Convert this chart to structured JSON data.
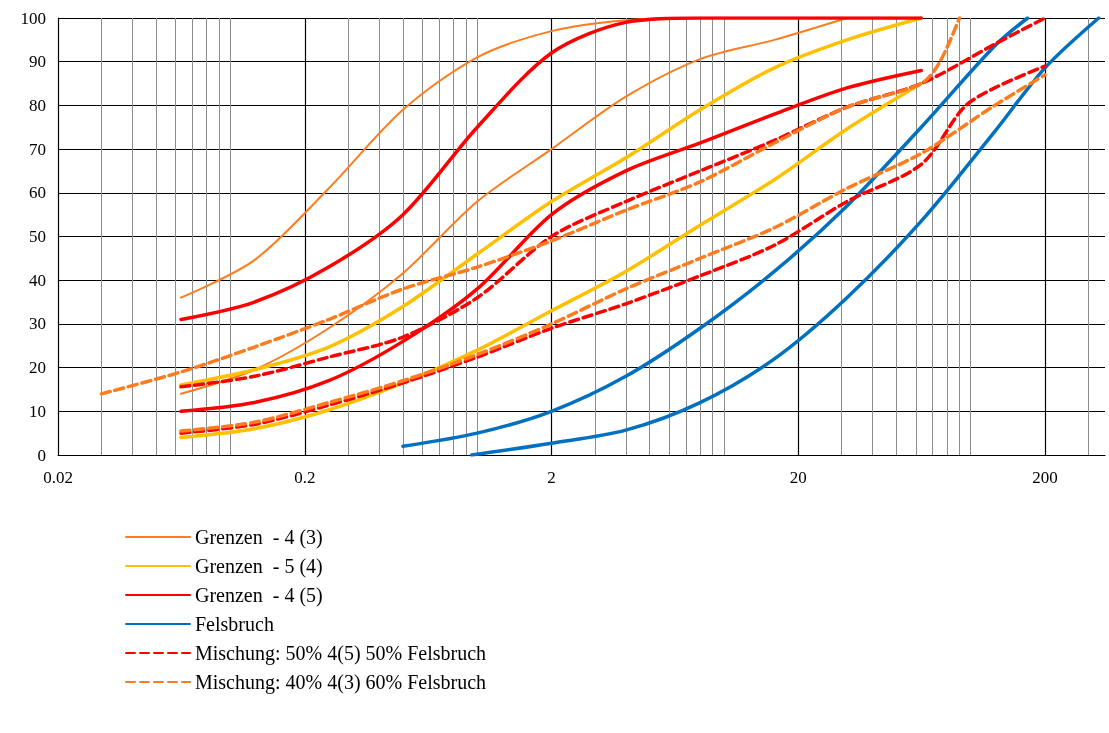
{
  "chart_data": {
    "type": "line",
    "xlim": [
      0.02,
      350
    ],
    "xticks": [
      0.02,
      0.2,
      2,
      20,
      200
    ],
    "ylim": [
      0,
      100
    ],
    "yticks": [
      0,
      10,
      20,
      30,
      40,
      50,
      60,
      70,
      80,
      90,
      100
    ],
    "log": "x",
    "grid": true,
    "legend": "bottom",
    "marker": "none",
    "series": [
      {
        "name": "Grenzen  - 4 (3)",
        "color": "#ff7c1e",
        "x": [
          0.063,
          0.125,
          0.25,
          0.5,
          1,
          2,
          4,
          8,
          16
        ],
        "values": [
          36,
          44.6,
          61,
          79,
          91,
          97,
          99.5,
          100,
          100
        ]
      },
      {
        "color": "#ff7c1e",
        "x": [
          0.063,
          0.125,
          0.25,
          0.5,
          1,
          2,
          4,
          8,
          16,
          31.5
        ],
        "values": [
          14,
          19.5,
          29,
          41.6,
          58,
          70,
          82,
          90.6,
          95,
          100
        ]
      },
      {
        "name": "Grenzen  - 5 (4)",
        "color": "#ffc000",
        "x": [
          0.063,
          0.125,
          0.25,
          0.5,
          1,
          2,
          4,
          8,
          16,
          31.5,
          63
        ],
        "values": [
          16,
          19.5,
          24.7,
          34,
          46,
          58,
          68,
          79,
          88.6,
          95,
          100
        ]
      },
      {
        "color": "#ffc000",
        "x": [
          0.063,
          0.125,
          0.25,
          0.5,
          1,
          2,
          4,
          8,
          16,
          31.5,
          63
        ],
        "values": [
          4,
          6,
          10.3,
          16.5,
          24,
          33,
          42,
          52.6,
          63,
          74.6,
          85
        ]
      },
      {
        "name": "Grenzen  - 4 (5)",
        "color": "#ff0000",
        "x": [
          0.063,
          0.125,
          0.25,
          0.5,
          1,
          2,
          4,
          8,
          16,
          31.5,
          63
        ],
        "values": [
          31,
          35,
          43,
          55,
          75,
          92,
          99,
          100,
          100,
          100,
          100
        ]
      },
      {
        "color": "#ff0000",
        "x": [
          0.063,
          0.125,
          0.25,
          0.5,
          1,
          2,
          4,
          8,
          16,
          31.5,
          63
        ],
        "values": [
          10,
          12,
          17,
          26,
          38,
          55,
          65,
          71.4,
          78,
          84,
          88
        ]
      },
      {
        "name": "Felsbruch",
        "color": "#0070c0",
        "x": [
          0.5,
          1,
          2,
          4,
          8,
          16,
          31.5,
          63,
          125,
          170
        ],
        "values": [
          2,
          5,
          10,
          18,
          29,
          42,
          57,
          75,
          93.6,
          100
        ]
      },
      {
        "color": "#0070c0",
        "x": [
          0.95,
          2,
          4,
          8,
          16,
          31.5,
          63,
          125,
          200,
          330
        ],
        "values": [
          0,
          2.7,
          5.7,
          12,
          22,
          36,
          53.5,
          74,
          88.6,
          100
        ]
      },
      {
        "name": "Mischung: 50% 4(5) 50% Felsbruch",
        "color": "#ff0000",
        "line_style": "dashed",
        "x": [
          0.063,
          0.125,
          0.25,
          0.5,
          1,
          2,
          4,
          8,
          16,
          31.5,
          63,
          125,
          200
        ],
        "values": [
          15.6,
          18,
          22.4,
          27,
          36,
          50,
          58,
          65,
          72,
          79.6,
          85,
          94,
          100
        ]
      },
      {
        "color": "#ff0000",
        "line_style": "dashed",
        "x": [
          0.063,
          0.125,
          0.25,
          0.5,
          1,
          2,
          4,
          8,
          16,
          31.5,
          63,
          94,
          125,
          200
        ],
        "values": [
          5,
          7,
          11.4,
          16.5,
          22.4,
          29,
          34.6,
          41,
          48,
          58,
          66.5,
          79.6,
          84,
          89
        ]
      },
      {
        "name": "Mischung: 40% 4(3) 60% Felsbruch",
        "color": "#ff7c1e",
        "line_style": "dashed",
        "x": [
          0.03,
          0.063,
          0.125,
          0.25,
          0.5,
          1,
          2,
          4,
          8,
          16,
          31.5,
          63,
          75,
          90
        ],
        "values": [
          14,
          19,
          24.7,
          31,
          38,
          43,
          49,
          56,
          62.5,
          71.4,
          79.6,
          85,
          90,
          100
        ]
      },
      {
        "color": "#ff7c1e",
        "line_style": "dashed",
        "x": [
          0.063,
          0.125,
          0.25,
          0.5,
          1,
          2,
          4,
          8,
          16,
          31.5,
          63,
          125,
          200
        ],
        "values": [
          5.5,
          7.5,
          12,
          17,
          23,
          30,
          38,
          45,
          52,
          61,
          69,
          80,
          87
        ]
      }
    ]
  }
}
